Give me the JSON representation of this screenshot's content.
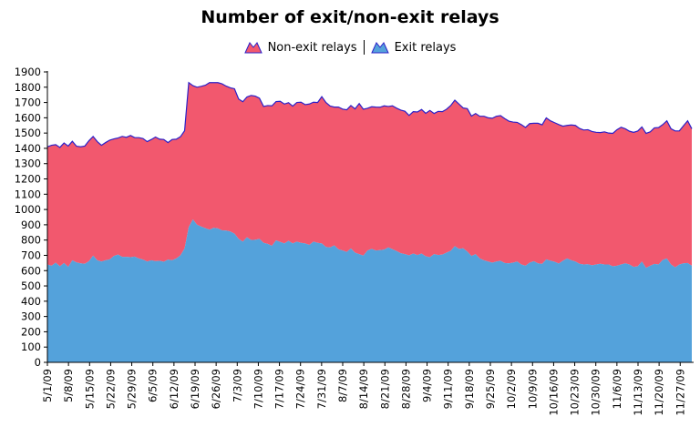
{
  "chart_data": {
    "type": "area",
    "stacked": true,
    "title": "Number of exit/non-exit relays",
    "xlabel": "",
    "ylabel": "",
    "ylim": [
      0,
      1900
    ],
    "yticks": [
      0,
      100,
      200,
      300,
      400,
      500,
      600,
      700,
      800,
      900,
      1000,
      1100,
      1200,
      1300,
      1400,
      1500,
      1600,
      1700,
      1800,
      1900
    ],
    "x_tick_labels": [
      "5/1/09",
      "5/8/09",
      "5/15/09",
      "5/22/09",
      "5/29/09",
      "6/5/09",
      "6/12/09",
      "6/19/09",
      "6/26/09",
      "7/3/09",
      "7/10/09",
      "7/17/09",
      "7/24/09",
      "7/31/09",
      "8/7/09",
      "8/14/09",
      "8/21/09",
      "8/28/09",
      "9/4/09",
      "9/11/09",
      "9/18/09",
      "9/25/09",
      "10/2/09",
      "10/9/09",
      "10/16/09",
      "10/23/09",
      "10/30/09",
      "11/6/09",
      "11/13/09",
      "11/20/09",
      "11/27/09"
    ],
    "legend_position": "top-center",
    "grid": false,
    "series": [
      {
        "name": "Exit relays",
        "color": "#54a2db",
        "values": [
          640,
          632,
          652,
          628,
          650,
          625,
          668,
          654,
          648,
          645,
          662,
          698,
          668,
          660,
          668,
          674,
          696,
          705,
          690,
          690,
          688,
          692,
          680,
          672,
          660,
          668,
          662,
          664,
          658,
          672,
          668,
          680,
          700,
          745,
          885,
          935,
          900,
          888,
          878,
          868,
          880,
          876,
          864,
          862,
          856,
          842,
          808,
          790,
          818,
          800,
          802,
          808,
          782,
          775,
          762,
          798,
          788,
          778,
          795,
          778,
          790,
          782,
          778,
          768,
          790,
          782,
          778,
          755,
          752,
          765,
          740,
          732,
          722,
          745,
          718,
          708,
          698,
          732,
          742,
          732,
          734,
          738,
          752,
          740,
          728,
          714,
          708,
          700,
          712,
          702,
          712,
          694,
          688,
          708,
          702,
          705,
          718,
          730,
          760,
          742,
          746,
          725,
          696,
          708,
          680,
          668,
          660,
          652,
          660,
          664,
          650,
          648,
          652,
          660,
          640,
          632,
          652,
          662,
          648,
          644,
          674,
          665,
          658,
          646,
          665,
          680,
          668,
          660,
          645,
          640,
          642,
          635,
          640,
          645,
          640,
          640,
          628,
          632,
          640,
          648,
          640,
          625,
          628,
          660,
          618,
          632,
          644,
          640,
          670,
          680,
          640,
          622,
          640,
          648,
          650,
          632
        ]
      },
      {
        "name": "Non-exit relays",
        "color": "#f2586e",
        "values": [
          770,
          788,
          772,
          778,
          785,
          790,
          778,
          760,
          762,
          770,
          788,
          780,
          776,
          760,
          770,
          780,
          766,
          763,
          788,
          782,
          796,
          778,
          790,
          792,
          784,
          790,
          812,
          796,
          800,
          766,
          790,
          780,
          776,
          770,
          945,
          875,
          900,
          918,
          935,
          962,
          950,
          954,
          958,
          945,
          940,
          948,
          915,
          915,
          918,
          946,
          940,
          920,
          892,
          905,
          916,
          908,
          920,
          912,
          904,
          898,
          910,
          920,
          908,
          922,
          912,
          918,
          960,
          945,
          925,
          905,
          930,
          925,
          930,
          935,
          940,
          985,
          958,
          930,
          930,
          938,
          935,
          940,
          922,
          938,
          935,
          936,
          935,
          915,
          928,
          936,
          942,
          935,
          960,
          920,
          940,
          935,
          938,
          950,
          955,
          948,
          918,
          935,
          915,
          920,
          930,
          942,
          940,
          945,
          950,
          950,
          945,
          930,
          920,
          910,
          915,
          905,
          910,
          902,
          916,
          910,
          925,
          915,
          910,
          910,
          880,
          870,
          885,
          890,
          885,
          880,
          880,
          875,
          865,
          858,
          868,
          860,
          870,
          890,
          898,
          880,
          872,
          880,
          885,
          880,
          880,
          876,
          890,
          896,
          885,
          900,
          888,
          892,
          874,
          900,
          930,
          896
        ]
      }
    ]
  }
}
